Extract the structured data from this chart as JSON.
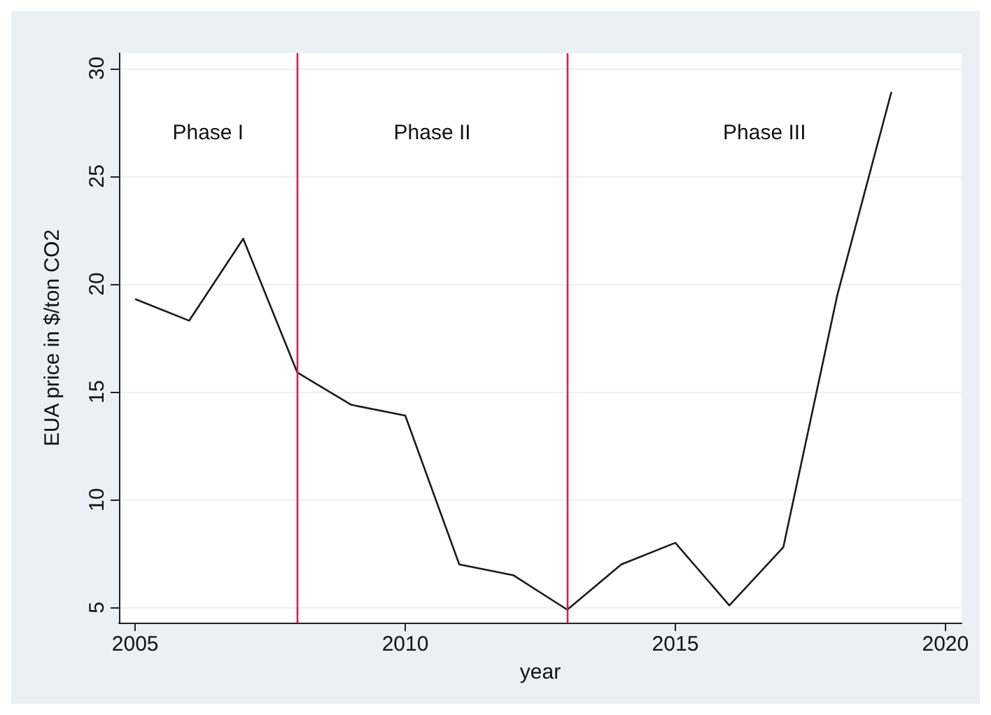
{
  "chart_data": {
    "type": "line",
    "x": [
      2005,
      2006,
      2007,
      2008,
      2009,
      2010,
      2011,
      2012,
      2013,
      2014,
      2015,
      2016,
      2017,
      2018,
      2019
    ],
    "series": [
      {
        "color": "#1a1a1a",
        "values": [
          19.3,
          18.3,
          22.1,
          15.9,
          14.4,
          13.9,
          7.0,
          6.5,
          4.9,
          7.0,
          8.0,
          5.1,
          7.8,
          19.5,
          28.9
        ]
      }
    ],
    "xlabel": "year",
    "ylabel": "EUA price in $/ton CO2",
    "xlim": [
      2004.7,
      2020.3
    ],
    "xticks": [
      2005,
      2010,
      2015,
      2020
    ],
    "ylim": [
      4.3,
      30.7
    ],
    "yticks": [
      5,
      10,
      15,
      20,
      25,
      30
    ],
    "grid": "y",
    "marker": "none",
    "line_style": "solid",
    "ref_lines": [
      {
        "axis": "x",
        "value": 2008,
        "color": "#d6204a"
      },
      {
        "axis": "x",
        "value": 2013,
        "color": "#d6204a"
      }
    ],
    "annotations": [
      "Phase I",
      "Phase II",
      "Phase III"
    ]
  }
}
